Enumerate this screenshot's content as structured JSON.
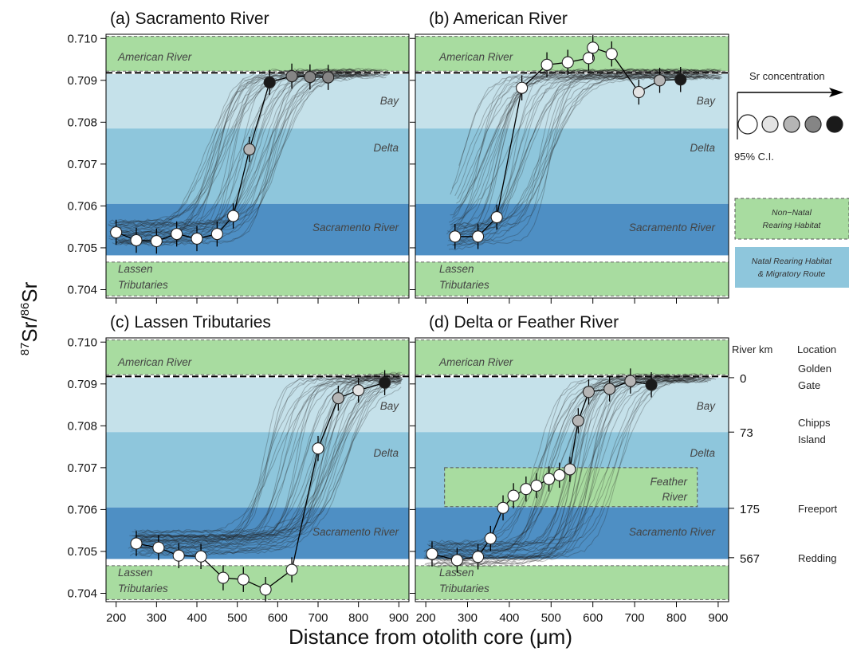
{
  "colors": {
    "green": "#a8dca0",
    "bay": "#c5e1ea",
    "delta": "#8ec6dc",
    "sacramento": "#4e8fc4",
    "trajectory": "#222222"
  },
  "zone_labels": {
    "american": "American River",
    "bay": "Bay",
    "delta": "Delta",
    "sacramento": "Sacramento River",
    "lassen_1": "Lassen",
    "lassen_2": "Tributaries",
    "feather_1": "Feather",
    "feather_2": "River"
  },
  "axes": {
    "y_label_base_1": "87",
    "y_label_mid": "Sr/",
    "y_label_base_2": "86",
    "y_label_end": "Sr",
    "x_label": "Distance from otolith core (μm)"
  },
  "legend": {
    "sr_concentration": "Sr concentration",
    "ci": "95% C.I.",
    "non_natal_1": "Non−Natal",
    "non_natal_2": "Rearing Habitat",
    "natal_1": "Natal Rearing Habitat",
    "natal_2": "& Migratory Route"
  },
  "river_km": {
    "header_km": "River km",
    "header_location": "Location",
    "rows": [
      {
        "km": "0",
        "loc1": "Golden",
        "loc2": "Gate",
        "y": 0.70915
      },
      {
        "km": "73",
        "loc1": "Chipps",
        "loc2": "Island",
        "y": 0.70785
      },
      {
        "km": "175",
        "loc1": "Freeport",
        "loc2": "",
        "y": 0.70603
      },
      {
        "km": "567",
        "loc1": "Redding",
        "loc2": "",
        "y": 0.70485
      }
    ]
  },
  "chart_data": [
    {
      "type": "line",
      "title": "(a) Sacramento River",
      "xlim": [
        175,
        925
      ],
      "ylim": [
        0.7038,
        0.7101
      ],
      "x_ticks": [
        200,
        300,
        400,
        500,
        600,
        700,
        800,
        900
      ],
      "y_ticks": [
        "0.704",
        "0.705",
        "0.706",
        "0.707",
        "0.708",
        "0.709",
        "0.710"
      ],
      "zones": {
        "american": [
          0.70922,
          0.71005
        ],
        "bay": [
          0.70785,
          0.70915
        ],
        "delta": [
          0.70605,
          0.70785
        ],
        "sacramento": [
          0.70482,
          0.70605
        ],
        "lassen": [
          0.70385,
          0.70466
        ]
      },
      "points": [
        {
          "x": 200,
          "y": 0.70537,
          "ci": 0.0003,
          "shade": 0
        },
        {
          "x": 250,
          "y": 0.70518,
          "ci": 0.0003,
          "shade": 0
        },
        {
          "x": 300,
          "y": 0.70516,
          "ci": 0.0003,
          "shade": 0
        },
        {
          "x": 350,
          "y": 0.70533,
          "ci": 0.0003,
          "shade": 0
        },
        {
          "x": 400,
          "y": 0.70522,
          "ci": 0.0003,
          "shade": 0
        },
        {
          "x": 450,
          "y": 0.70533,
          "ci": 0.0003,
          "shade": 0
        },
        {
          "x": 490,
          "y": 0.70576,
          "ci": 0.0003,
          "shade": 0
        },
        {
          "x": 530,
          "y": 0.70735,
          "ci": 0.0003,
          "shade": 2
        },
        {
          "x": 580,
          "y": 0.70895,
          "ci": 0.0003,
          "shade": 4
        },
        {
          "x": 635,
          "y": 0.7091,
          "ci": 0.0003,
          "shade": 3
        },
        {
          "x": 680,
          "y": 0.70908,
          "ci": 0.0003,
          "shade": 3
        },
        {
          "x": 725,
          "y": 0.70907,
          "ci": 0.0003,
          "shade": 3
        }
      ]
    },
    {
      "type": "line",
      "title": "(b) American River",
      "xlim": [
        175,
        925
      ],
      "ylim": [
        0.7038,
        0.7101
      ],
      "x_ticks": [
        200,
        300,
        400,
        500,
        600,
        700,
        800,
        900
      ],
      "y_ticks": [],
      "zones": {
        "american": [
          0.70922,
          0.71005
        ],
        "bay": [
          0.70785,
          0.70915
        ],
        "delta": [
          0.70605,
          0.70785
        ],
        "sacramento": [
          0.70482,
          0.70605
        ],
        "lassen": [
          0.70385,
          0.70466
        ]
      },
      "points": [
        {
          "x": 270,
          "y": 0.70527,
          "ci": 0.0003,
          "shade": 0
        },
        {
          "x": 325,
          "y": 0.70527,
          "ci": 0.0003,
          "shade": 0
        },
        {
          "x": 370,
          "y": 0.70573,
          "ci": 0.0003,
          "shade": 0
        },
        {
          "x": 430,
          "y": 0.70882,
          "ci": 0.0003,
          "shade": 0
        },
        {
          "x": 490,
          "y": 0.70937,
          "ci": 0.0003,
          "shade": 0
        },
        {
          "x": 540,
          "y": 0.70943,
          "ci": 0.0003,
          "shade": 0
        },
        {
          "x": 590,
          "y": 0.70953,
          "ci": 0.0003,
          "shade": 0
        },
        {
          "x": 600,
          "y": 0.70978,
          "ci": 0.0003,
          "shade": 0
        },
        {
          "x": 645,
          "y": 0.70963,
          "ci": 0.0003,
          "shade": 0
        },
        {
          "x": 710,
          "y": 0.70872,
          "ci": 0.0003,
          "shade": 1
        },
        {
          "x": 760,
          "y": 0.709,
          "ci": 0.0003,
          "shade": 2
        },
        {
          "x": 810,
          "y": 0.70902,
          "ci": 0.0003,
          "shade": 4
        }
      ]
    },
    {
      "type": "line",
      "title": "(c) Lassen Tributaries",
      "xlim": [
        175,
        925
      ],
      "ylim": [
        0.7038,
        0.7101
      ],
      "x_ticks": [
        200,
        300,
        400,
        500,
        600,
        700,
        800,
        900
      ],
      "x_tick_labels": [
        "200",
        "300",
        "400",
        "500",
        "600",
        "700",
        "800",
        "900"
      ],
      "y_ticks": [
        "0.704",
        "0.705",
        "0.706",
        "0.707",
        "0.708",
        "0.709",
        "0.710"
      ],
      "zones": {
        "american": [
          0.70922,
          0.71005
        ],
        "bay": [
          0.70785,
          0.70915
        ],
        "delta": [
          0.70605,
          0.70785
        ],
        "sacramento": [
          0.70482,
          0.70605
        ],
        "lassen": [
          0.70385,
          0.70466
        ]
      },
      "points": [
        {
          "x": 250,
          "y": 0.70519,
          "ci": 0.0003,
          "shade": 0
        },
        {
          "x": 305,
          "y": 0.70509,
          "ci": 0.0003,
          "shade": 0
        },
        {
          "x": 355,
          "y": 0.7049,
          "ci": 0.0003,
          "shade": 0
        },
        {
          "x": 410,
          "y": 0.70488,
          "ci": 0.0003,
          "shade": 0
        },
        {
          "x": 465,
          "y": 0.70437,
          "ci": 0.0003,
          "shade": 0
        },
        {
          "x": 515,
          "y": 0.70433,
          "ci": 0.0003,
          "shade": 0
        },
        {
          "x": 570,
          "y": 0.70409,
          "ci": 0.0003,
          "shade": 0
        },
        {
          "x": 635,
          "y": 0.70456,
          "ci": 0.0003,
          "shade": 0
        },
        {
          "x": 700,
          "y": 0.70746,
          "ci": 0.0003,
          "shade": 0
        },
        {
          "x": 750,
          "y": 0.70866,
          "ci": 0.0003,
          "shade": 2
        },
        {
          "x": 800,
          "y": 0.70885,
          "ci": 0.0003,
          "shade": 1
        },
        {
          "x": 865,
          "y": 0.70903,
          "ci": 0.0003,
          "shade": 4
        }
      ]
    },
    {
      "type": "line",
      "title": "(d) Delta or Feather River",
      "xlim": [
        175,
        925
      ],
      "ylim": [
        0.7038,
        0.7101
      ],
      "x_ticks": [
        200,
        300,
        400,
        500,
        600,
        700,
        800,
        900
      ],
      "x_tick_labels": [
        "200",
        "300",
        "400",
        "500",
        "600",
        "700",
        "800",
        "900"
      ],
      "y_ticks": [],
      "zones": {
        "american": [
          0.70922,
          0.71005
        ],
        "bay": [
          0.70785,
          0.70915
        ],
        "delta": [
          0.70605,
          0.70785
        ],
        "sacramento": [
          0.70482,
          0.70605
        ],
        "lassen": [
          0.70385,
          0.70466
        ]
      },
      "feather": {
        "x": [
          245,
          850
        ],
        "y": [
          0.70607,
          0.707
        ]
      },
      "points": [
        {
          "x": 215,
          "y": 0.70494,
          "ci": 0.0003,
          "shade": 0
        },
        {
          "x": 275,
          "y": 0.70479,
          "ci": 0.0003,
          "shade": 0
        },
        {
          "x": 325,
          "y": 0.70487,
          "ci": 0.0003,
          "shade": 0
        },
        {
          "x": 355,
          "y": 0.70531,
          "ci": 0.0003,
          "shade": 0
        },
        {
          "x": 385,
          "y": 0.70604,
          "ci": 0.0003,
          "shade": 0
        },
        {
          "x": 410,
          "y": 0.70633,
          "ci": 0.0003,
          "shade": 0
        },
        {
          "x": 440,
          "y": 0.70649,
          "ci": 0.0003,
          "shade": 0
        },
        {
          "x": 465,
          "y": 0.70657,
          "ci": 0.0003,
          "shade": 0
        },
        {
          "x": 495,
          "y": 0.70673,
          "ci": 0.0003,
          "shade": 0
        },
        {
          "x": 520,
          "y": 0.70682,
          "ci": 0.0003,
          "shade": 0
        },
        {
          "x": 545,
          "y": 0.70696,
          "ci": 0.0003,
          "shade": 1
        },
        {
          "x": 565,
          "y": 0.70812,
          "ci": 0.0003,
          "shade": 2
        },
        {
          "x": 590,
          "y": 0.70881,
          "ci": 0.0003,
          "shade": 2
        },
        {
          "x": 640,
          "y": 0.70888,
          "ci": 0.0003,
          "shade": 2
        },
        {
          "x": 690,
          "y": 0.70907,
          "ci": 0.0003,
          "shade": 2
        },
        {
          "x": 740,
          "y": 0.70898,
          "ci": 0.0003,
          "shade": 4
        }
      ]
    }
  ]
}
